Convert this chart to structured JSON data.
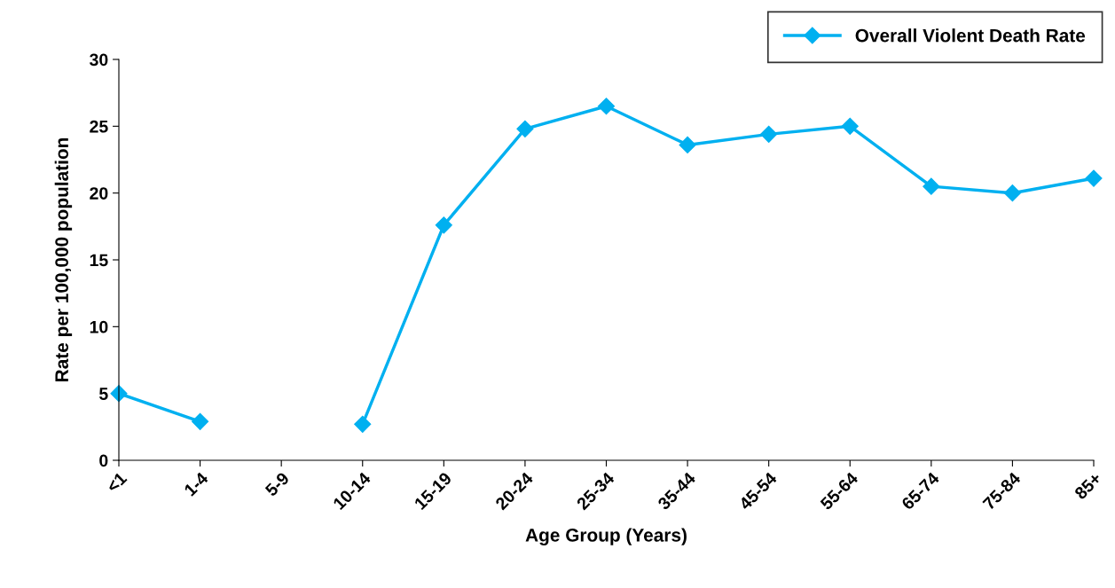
{
  "chart_data": {
    "type": "line",
    "xlabel": "Age Group (Years)",
    "ylabel": "Rate per 100,000 population",
    "categories": [
      "<1",
      "1-4",
      "5-9",
      "10-14",
      "15-19",
      "20-24",
      "25-34",
      "35-44",
      "45-54",
      "55-64",
      "65-74",
      "75-84",
      "85+"
    ],
    "series": [
      {
        "name": "Overall Violent Death Rate",
        "color": "#00b0f0",
        "values": [
          5.0,
          2.9,
          null,
          2.7,
          17.6,
          24.8,
          26.5,
          23.6,
          24.4,
          25.0,
          20.5,
          20.0,
          21.1
        ]
      }
    ],
    "ylim": [
      0,
      30
    ],
    "yticks": [
      0,
      5,
      10,
      15,
      20,
      25,
      30
    ],
    "grid": false,
    "legend": "top right",
    "marker": "diamond",
    "line_style": "solid"
  }
}
